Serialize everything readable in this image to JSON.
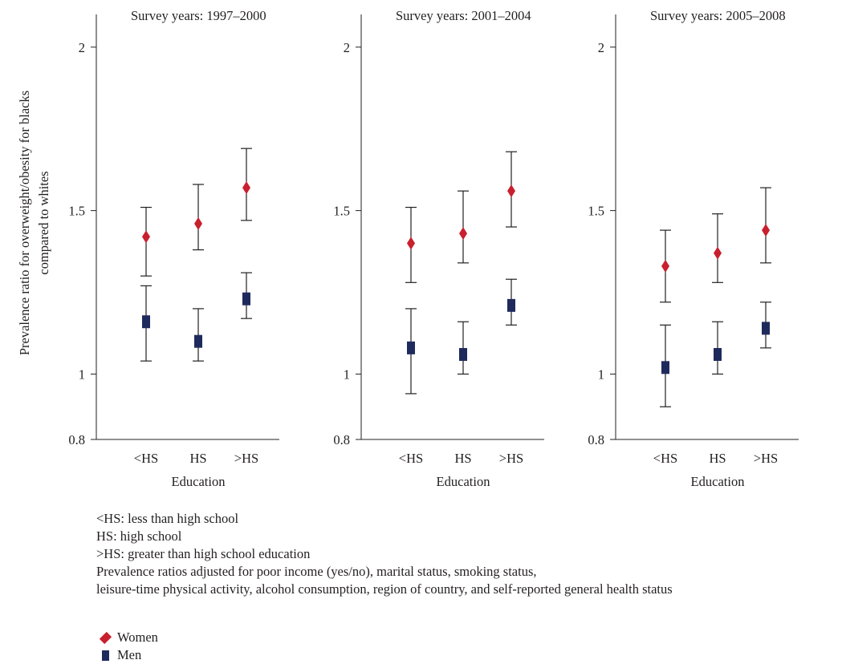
{
  "colors": {
    "women": "#c8202f",
    "men": "#1f2a5c",
    "axis": "#231f20"
  },
  "legend": {
    "women_label": "Women",
    "women_icon": "red-diamond-icon",
    "men_label": "Men",
    "men_icon": "navy-square-icon"
  },
  "notes": [
    "<HS: less than high school",
    "HS: high school",
    ">HS: greater than high school education",
    "Prevalence ratios adjusted for poor income (yes/no), marital status, smoking status,",
    "leisure-time physical activity, alcohol consumption, region of country, and self-reported general health status"
  ],
  "chart_data": {
    "type": "scatter",
    "ylabel": "Prevalence ratio for overweight/obesity for blacks compared to whites",
    "ylabel_lines": [
      "Prevalence ratio for overweight/obesity for blacks",
      "compared to whites"
    ],
    "xlabel": "Education",
    "categories": [
      "<HS",
      "HS",
      ">HS"
    ],
    "ylim": [
      0.8,
      2.1
    ],
    "yticks": [
      0.8,
      1,
      1.5,
      2
    ],
    "ytick_labels": [
      "0.8",
      "1",
      "1.5",
      "2"
    ],
    "grid": false,
    "panels": [
      {
        "title": "Survey years: 1997–2000",
        "series": [
          {
            "name": "Women",
            "values": [
              1.42,
              1.46,
              1.57
            ],
            "lower": [
              1.3,
              1.38,
              1.47
            ],
            "upper": [
              1.51,
              1.58,
              1.69
            ]
          },
          {
            "name": "Men",
            "values": [
              1.16,
              1.1,
              1.23
            ],
            "lower": [
              1.04,
              1.04,
              1.17
            ],
            "upper": [
              1.27,
              1.2,
              1.31
            ]
          }
        ]
      },
      {
        "title": "Survey years: 2001–2004",
        "series": [
          {
            "name": "Women",
            "values": [
              1.4,
              1.43,
              1.56
            ],
            "lower": [
              1.28,
              1.34,
              1.45
            ],
            "upper": [
              1.51,
              1.56,
              1.68
            ]
          },
          {
            "name": "Men",
            "values": [
              1.08,
              1.06,
              1.21
            ],
            "lower": [
              0.94,
              1.0,
              1.15
            ],
            "upper": [
              1.2,
              1.16,
              1.29
            ]
          }
        ]
      },
      {
        "title": "Survey years: 2005–2008",
        "series": [
          {
            "name": "Women",
            "values": [
              1.33,
              1.37,
              1.44
            ],
            "lower": [
              1.22,
              1.28,
              1.34
            ],
            "upper": [
              1.44,
              1.49,
              1.57
            ]
          },
          {
            "name": "Men",
            "values": [
              1.02,
              1.06,
              1.14
            ],
            "lower": [
              0.9,
              1.0,
              1.08
            ],
            "upper": [
              1.15,
              1.16,
              1.22
            ]
          }
        ]
      }
    ]
  }
}
